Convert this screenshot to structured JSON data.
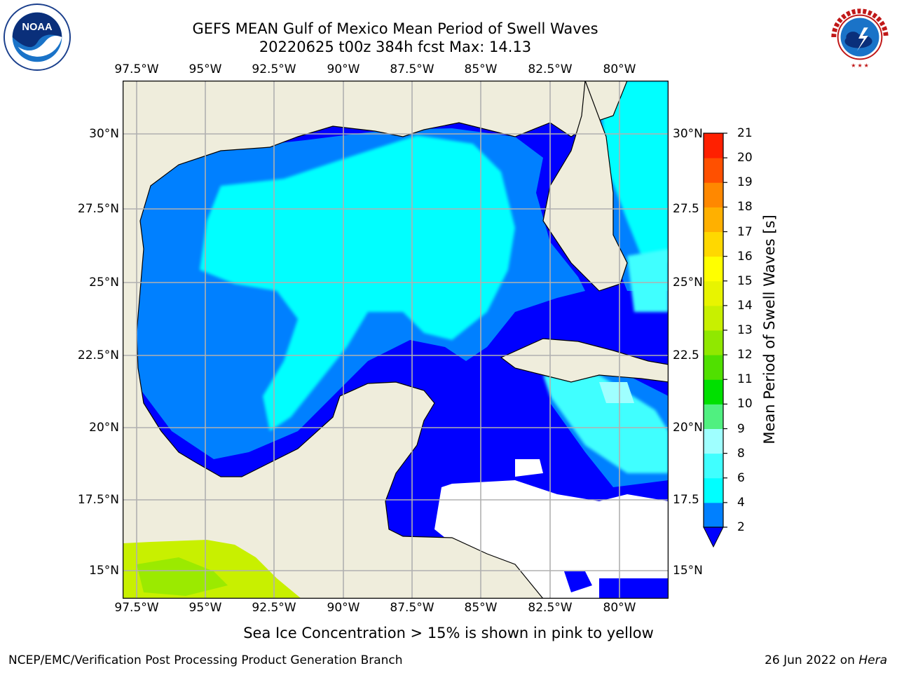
{
  "header": {
    "title_line1": "GEFS MEAN Gulf of Mexico Mean Period of Swell Waves",
    "title_line2": "20220625 t00z 384h fcst   Max: 14.13"
  },
  "logos": {
    "left": "NOAA",
    "left_ring_text": "NATIONAL OCEANIC AND ATMOSPHERIC ADMINISTRATION · U.S. DEPARTMENT OF COMMERCE",
    "right_ring_text": "NATIONAL WEATHER SERVICE"
  },
  "map": {
    "lon_labels": [
      "97.5°W",
      "95°W",
      "92.5°W",
      "90°W",
      "87.5°W",
      "85°W",
      "82.5°W",
      "80°W"
    ],
    "lat_labels_left": [
      "30°N",
      "27.5°N",
      "25°N",
      "22.5°N",
      "20°N",
      "17.5°N",
      "15°N"
    ],
    "lat_labels_right": [
      "30°N",
      "27.5",
      "25°N",
      "22.5",
      "20°N",
      "17.5",
      "15°N"
    ],
    "lon_range": [
      -98,
      -78.2
    ],
    "lat_range": [
      14,
      31.7
    ],
    "colors": {
      "land": "#efeddc",
      "no_data": "#ffffff",
      "gridline": "#b0b0b0",
      "coast": "#000000"
    }
  },
  "colorbar": {
    "label": "Mean Period of Swell Waves [s]",
    "ticks": [
      "2",
      "4",
      "6",
      "8",
      "9",
      "10",
      "11",
      "12",
      "13",
      "14",
      "15",
      "16",
      "17",
      "18",
      "19",
      "20",
      "21"
    ],
    "colors": [
      "#0000ff",
      "#0080ff",
      "#00ffff",
      "#40ffff",
      "#9fffff",
      "#50f080",
      "#00e000",
      "#50e000",
      "#90e800",
      "#c8f000",
      "#e8f400",
      "#ffff00",
      "#ffd800",
      "#ffb000",
      "#ff8800",
      "#ff5000",
      "#ff2000",
      "#ff0000"
    ],
    "extend": "min"
  },
  "note": "Sea Ice Concentration > 15% is shown in pink to yellow",
  "footer": {
    "left": "NCEP/EMC/Verification Post Processing Product Generation Branch",
    "right_prefix": "26 Jun 2022 on ",
    "right_host": "Hera"
  }
}
